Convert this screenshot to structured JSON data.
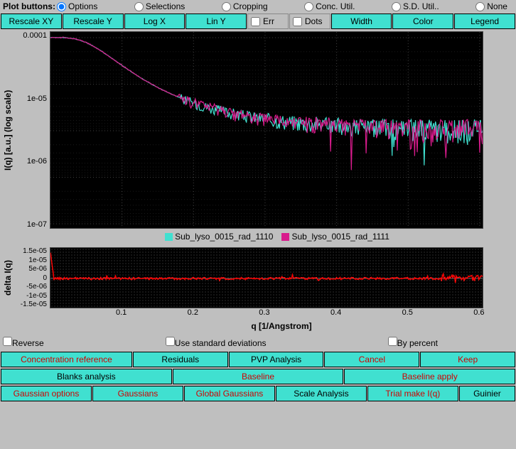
{
  "radios": {
    "header": "Plot buttons:",
    "options": [
      {
        "label": "Options",
        "checked": true
      },
      {
        "label": "Selections",
        "checked": false
      },
      {
        "label": "Cropping",
        "checked": false
      },
      {
        "label": "Conc. Util.",
        "checked": false
      },
      {
        "label": "S.D. Util..",
        "checked": false
      },
      {
        "label": "None",
        "checked": false
      }
    ]
  },
  "toolbar1": [
    {
      "label": "Rescale XY",
      "type": "btn"
    },
    {
      "label": "Rescale Y",
      "type": "btn"
    },
    {
      "label": "Log X",
      "type": "btn"
    },
    {
      "label": "Lin Y",
      "type": "btn"
    },
    {
      "label": "Err",
      "type": "chk"
    },
    {
      "label": "Dots",
      "type": "chk"
    },
    {
      "label": "Width",
      "type": "btn"
    },
    {
      "label": "Color",
      "type": "btn"
    },
    {
      "label": "Legend",
      "type": "btn"
    }
  ],
  "main_chart": {
    "ylabel": "I(q) [a.u.] (log scale)",
    "yticks": [
      "0.0001",
      "1e-05",
      "1e-06",
      "1e-07"
    ],
    "xlabel": "q [1/Angstrom]",
    "xticks": [
      {
        "label": "0.1",
        "pos": 16.5
      },
      {
        "label": "0.2",
        "pos": 33
      },
      {
        "label": "0.3",
        "pos": 49.5
      },
      {
        "label": "0.4",
        "pos": 66
      },
      {
        "label": "0.5",
        "pos": 82.5
      },
      {
        "label": "0.6",
        "pos": 99
      }
    ],
    "series": [
      {
        "name": "Sub_lyso_0015_rad_1110",
        "color": "#40e0d0"
      },
      {
        "name": "Sub_lyso_0015_rad_1111",
        "color": "#d81b8c"
      }
    ]
  },
  "delta_chart": {
    "ylabel": "delta I(q)",
    "yticks": [
      "1.5e-05",
      "1e-05",
      "5e-06",
      "0",
      "-5e-06",
      "-1e-05",
      "-1.5e-05"
    ],
    "line_color": "#ff0000"
  },
  "check_row": [
    {
      "label": "Reverse"
    },
    {
      "label": "Use standard deviations"
    },
    {
      "label": "By percent"
    }
  ],
  "button_rows": [
    [
      {
        "label": "Concentration reference",
        "color": "red",
        "flex": 1.4
      },
      {
        "label": "Residuals",
        "color": "black",
        "flex": 1
      },
      {
        "label": "PVP Analysis",
        "color": "black",
        "flex": 1
      },
      {
        "label": "Cancel",
        "color": "red",
        "flex": 1
      },
      {
        "label": "Keep",
        "color": "red",
        "flex": 1
      }
    ],
    [
      {
        "label": "Blanks analysis",
        "color": "black",
        "flex": 1
      },
      {
        "label": "Baseline",
        "color": "red",
        "flex": 1
      },
      {
        "label": "Baseline apply",
        "color": "red",
        "flex": 1
      }
    ],
    [
      {
        "label": "Gaussian options",
        "color": "red",
        "flex": 1
      },
      {
        "label": "Gaussians",
        "color": "red",
        "flex": 1
      },
      {
        "label": "Global Gaussians",
        "color": "red",
        "flex": 1
      },
      {
        "label": "Scale Analysis",
        "color": "black",
        "flex": 1
      },
      {
        "label": "Trial make I(q)",
        "color": "red",
        "flex": 1
      },
      {
        "label": "Guinier",
        "color": "black",
        "flex": 0.6
      }
    ]
  ]
}
